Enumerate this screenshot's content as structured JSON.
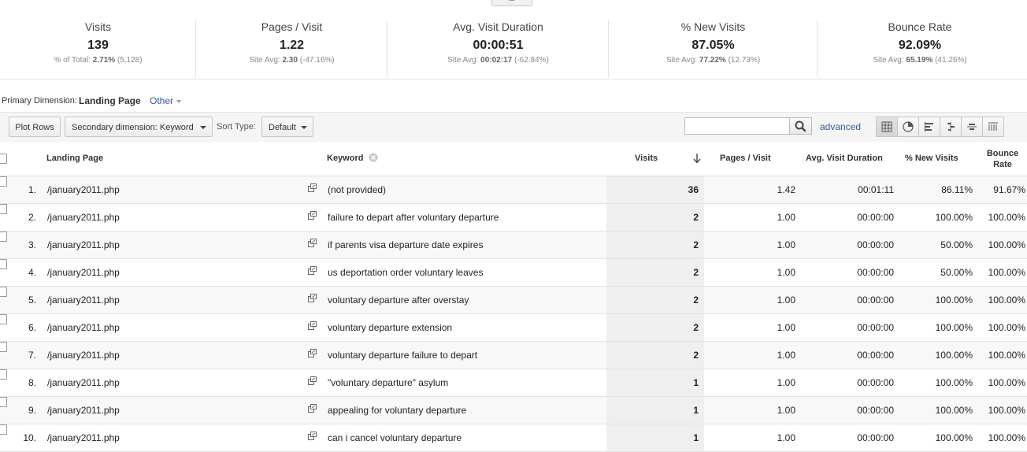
{
  "scorecard": [
    {
      "title": "Visits",
      "value": "139",
      "sub_prefix": "% of Total: ",
      "sub_bold": "2.71%",
      "sub_suffix": " (5,128)"
    },
    {
      "title": "Pages / Visit",
      "value": "1.22",
      "sub_prefix": "Site Avg: ",
      "sub_bold": "2.30",
      "sub_suffix": " (-47.16%)"
    },
    {
      "title": "Avg. Visit Duration",
      "value": "00:00:51",
      "sub_prefix": "Site Avg: ",
      "sub_bold": "00:02:17",
      "sub_suffix": " (-62.84%)"
    },
    {
      "title": "% New Visits",
      "value": "87.05%",
      "sub_prefix": "Site Avg: ",
      "sub_bold": "77.22%",
      "sub_suffix": " (12.73%)"
    },
    {
      "title": "Bounce Rate",
      "value": "92.09%",
      "sub_prefix": "Site Avg: ",
      "sub_bold": "65.19%",
      "sub_suffix": " (41.26%)"
    }
  ],
  "primary_dimension": {
    "label": "Primary Dimension:",
    "selected": "Landing Page",
    "other": "Other"
  },
  "toolbar": {
    "plot_rows": "Plot Rows",
    "secondary_dimension": "Secondary dimension: Keyword",
    "sort_type_label": "Sort Type:",
    "sort_type_value": "Default",
    "search_value": "",
    "advanced": "advanced",
    "views": [
      "table-icon",
      "pie-icon",
      "performance-icon",
      "comparison-icon",
      "term-cloud-icon",
      "pivot-icon"
    ]
  },
  "table": {
    "headers": {
      "landing_page": "Landing Page",
      "keyword": "Keyword",
      "visits": "Visits",
      "pages_visit": "Pages / Visit",
      "avg_duration": "Avg. Visit Duration",
      "new_visits": "% New Visits",
      "bounce_line1": "Bounce",
      "bounce_line2": "Rate"
    },
    "rows": [
      {
        "num": "1.",
        "page": "/january2011.php",
        "keyword": "(not provided)",
        "visits": "36",
        "ppv": "1.42",
        "duration": "00:01:11",
        "new": "86.11%",
        "bounce": "91.67%"
      },
      {
        "num": "2.",
        "page": "/january2011.php",
        "keyword": "failure to depart after voluntary departure",
        "visits": "2",
        "ppv": "1.00",
        "duration": "00:00:00",
        "new": "100.00%",
        "bounce": "100.00%"
      },
      {
        "num": "3.",
        "page": "/january2011.php",
        "keyword": "if parents visa departure date expires",
        "visits": "2",
        "ppv": "1.00",
        "duration": "00:00:00",
        "new": "50.00%",
        "bounce": "100.00%"
      },
      {
        "num": "4.",
        "page": "/january2011.php",
        "keyword": "us deportation order voluntary leaves",
        "visits": "2",
        "ppv": "1.00",
        "duration": "00:00:00",
        "new": "50.00%",
        "bounce": "100.00%"
      },
      {
        "num": "5.",
        "page": "/january2011.php",
        "keyword": "voluntary departure after overstay",
        "visits": "2",
        "ppv": "1.00",
        "duration": "00:00:00",
        "new": "100.00%",
        "bounce": "100.00%"
      },
      {
        "num": "6.",
        "page": "/january2011.php",
        "keyword": "voluntary departure extension",
        "visits": "2",
        "ppv": "1.00",
        "duration": "00:00:00",
        "new": "100.00%",
        "bounce": "100.00%"
      },
      {
        "num": "7.",
        "page": "/january2011.php",
        "keyword": "voluntary departure failure to depart",
        "visits": "2",
        "ppv": "1.00",
        "duration": "00:00:00",
        "new": "100.00%",
        "bounce": "100.00%"
      },
      {
        "num": "8.",
        "page": "/january2011.php",
        "keyword": "\"voluntary departure\" asylum",
        "visits": "1",
        "ppv": "1.00",
        "duration": "00:00:00",
        "new": "100.00%",
        "bounce": "100.00%"
      },
      {
        "num": "9.",
        "page": "/january2011.php",
        "keyword": "appealing for voluntary departure",
        "visits": "1",
        "ppv": "1.00",
        "duration": "00:00:00",
        "new": "100.00%",
        "bounce": "100.00%"
      },
      {
        "num": "10.",
        "page": "/january2011.php",
        "keyword": "can i cancel voluntary departure",
        "visits": "1",
        "ppv": "1.00",
        "duration": "00:00:00",
        "new": "100.00%",
        "bounce": "100.00%"
      }
    ]
  },
  "colors": {
    "link": "#2a5db0",
    "visits_column_bg": "#efefef"
  }
}
